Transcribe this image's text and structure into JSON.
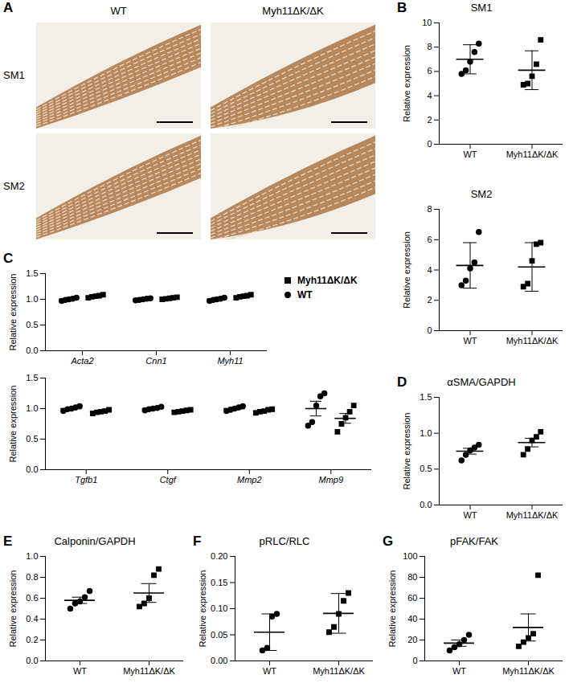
{
  "image_panel": {
    "panel": "A",
    "columns": [
      "WT",
      "Myh11ΔK/ΔK"
    ],
    "rows": [
      "SM1",
      "SM2"
    ]
  },
  "chart_data": [
    {
      "panel": "B",
      "type": "scatter",
      "title": "SM1",
      "y_label": "Relative expression",
      "categories": [
        "WT",
        "Myh11ΔK/ΔK"
      ],
      "ylim": [
        0,
        10
      ],
      "yticks": [
        0,
        2,
        4,
        6,
        8,
        10
      ],
      "series": [
        {
          "name": "WT",
          "marker": "circle",
          "color": "#000000",
          "points": [
            5.8,
            6.1,
            6.8,
            7.6,
            8.3
          ],
          "mean": 7.0,
          "error": 1.2
        },
        {
          "name": "Myh11ΔK/ΔK",
          "marker": "square",
          "color": "#000000",
          "points": [
            4.9,
            5.0,
            5.6,
            6.6,
            8.6
          ],
          "mean": 6.1,
          "error": 1.6
        }
      ]
    },
    {
      "type": "scatter",
      "title": "SM2",
      "y_label": "Relative expression",
      "categories": [
        "WT",
        "Myh11ΔK/ΔK"
      ],
      "ylim": [
        0,
        8
      ],
      "yticks": [
        0,
        2,
        4,
        6,
        8
      ],
      "series": [
        {
          "name": "WT",
          "marker": "circle",
          "color": "#000000",
          "points": [
            3.0,
            3.3,
            4.1,
            4.5,
            6.5
          ],
          "mean": 4.3,
          "error": 1.5
        },
        {
          "name": "Myh11ΔK/ΔK",
          "marker": "square",
          "color": "#000000",
          "points": [
            2.9,
            3.1,
            4.6,
            5.7,
            5.8
          ],
          "mean": 4.2,
          "error": 1.6
        }
      ]
    },
    {
      "panel": "C",
      "type": "scatter",
      "y_label": "Relative expression",
      "legend": "right",
      "categories": [
        "Acta2",
        "Cnn1",
        "Myh11"
      ],
      "ylim": [
        0,
        1.5
      ],
      "yticks": [
        {
          "value": 0,
          "label": "0.0"
        },
        0.5,
        {
          "value": 1,
          "label": "1.0"
        },
        1.5
      ],
      "series": [
        {
          "name": "WT",
          "marker": "circle",
          "color": "#000000",
          "points": [
            [
              0.97,
              0.99,
              1.0,
              1.01,
              1.03
            ],
            [
              0.98,
              0.99,
              1.0,
              1.01,
              1.02
            ],
            [
              0.97,
              0.99,
              1.0,
              1.01,
              1.03
            ]
          ],
          "means": [
            1.0,
            1.0,
            1.0
          ],
          "errors": [
            0.02,
            0.01,
            0.02
          ]
        },
        {
          "name": "Myh11ΔK/ΔK",
          "marker": "square",
          "color": "#000000",
          "points": [
            [
              1.03,
              1.05,
              1.06,
              1.07,
              1.09
            ],
            [
              1.0,
              1.01,
              1.02,
              1.03,
              1.04
            ],
            [
              1.03,
              1.05,
              1.06,
              1.07,
              1.09
            ]
          ],
          "means": [
            1.06,
            1.02,
            1.06
          ],
          "errors": [
            0.02,
            0.01,
            0.02
          ]
        }
      ]
    },
    {
      "type": "scatter",
      "y_label": "Relative expression",
      "categories": [
        "Tgfb1",
        "Ctgf",
        "Mmp2",
        "Mmp9"
      ],
      "ylim": [
        0,
        1.5
      ],
      "yticks": [
        {
          "value": 0,
          "label": "0.0"
        },
        0.5,
        {
          "value": 1,
          "label": "1.0"
        },
        1.5
      ],
      "series": [
        {
          "name": "WT",
          "marker": "circle",
          "color": "#000000",
          "points": [
            [
              0.96,
              0.99,
              1.0,
              1.02,
              1.04
            ],
            [
              0.97,
              0.99,
              1.0,
              1.01,
              1.03
            ],
            [
              0.96,
              0.98,
              1.0,
              1.02,
              1.04
            ],
            [
              0.72,
              0.78,
              1.05,
              1.2,
              1.25
            ]
          ],
          "means": [
            1.0,
            1.0,
            1.0,
            1.0
          ],
          "errors": [
            0.02,
            0.01,
            0.02,
            0.12
          ]
        },
        {
          "name": "Myh11ΔK/ΔK",
          "marker": "square",
          "color": "#000000",
          "points": [
            [
              0.92,
              0.94,
              0.95,
              0.96,
              0.98
            ],
            [
              0.94,
              0.95,
              0.96,
              0.97,
              0.98
            ],
            [
              0.93,
              0.95,
              0.96,
              0.98,
              0.99
            ],
            [
              0.62,
              0.75,
              0.85,
              0.95,
              1.05
            ]
          ],
          "means": [
            0.95,
            0.96,
            0.96,
            0.84
          ],
          "errors": [
            0.01,
            0.01,
            0.01,
            0.08
          ]
        }
      ]
    },
    {
      "panel": "D",
      "type": "scatter",
      "title": "αSMA/GAPDH",
      "y_label": "Relative expression",
      "categories": [
        "WT",
        "Myh11ΔK/ΔK"
      ],
      "ylim": [
        0,
        1.5
      ],
      "yticks": [
        {
          "value": 0,
          "label": "0.0"
        },
        0.5,
        {
          "value": 1,
          "label": "1.0"
        },
        1.5
      ],
      "series": [
        {
          "name": "WT",
          "marker": "circle",
          "color": "#000000",
          "points": [
            0.62,
            0.7,
            0.76,
            0.8,
            0.84
          ],
          "mean": 0.75,
          "error": 0.04
        },
        {
          "name": "Myh11ΔK/ΔK",
          "marker": "square",
          "color": "#000000",
          "points": [
            0.7,
            0.78,
            0.9,
            0.95,
            1.02
          ],
          "mean": 0.87,
          "error": 0.06
        }
      ]
    },
    {
      "panel": "E",
      "type": "scatter",
      "title": "Calponin/GAPDH",
      "y_label": "Relative expression",
      "categories": [
        "WT",
        "Myh11ΔK/ΔK"
      ],
      "ylim": [
        0,
        1
      ],
      "yticks": [
        {
          "value": 0,
          "label": "0.0"
        },
        0.2,
        0.4,
        0.6,
        0.8,
        {
          "value": 1,
          "label": "1.0"
        }
      ],
      "series": [
        {
          "name": "WT",
          "marker": "circle",
          "color": "#000000",
          "points": [
            0.5,
            0.55,
            0.57,
            0.61,
            0.67
          ],
          "mean": 0.58,
          "error": 0.03
        },
        {
          "name": "Myh11ΔK/ΔK",
          "marker": "square",
          "color": "#000000",
          "points": [
            0.52,
            0.55,
            0.6,
            0.82,
            0.88
          ],
          "mean": 0.65,
          "error": 0.09
        }
      ]
    },
    {
      "panel": "F",
      "type": "scatter",
      "title": "pRLC/RLC",
      "y_label": "Relative expression",
      "categories": [
        "WT",
        "Myh11ΔK/ΔK"
      ],
      "ylim": [
        0,
        0.2
      ],
      "yticks": [
        {
          "value": 0,
          "label": "0.00"
        },
        0.05,
        {
          "value": 0.1,
          "label": "0.10"
        },
        0.15,
        {
          "value": 0.2,
          "label": "0.20"
        }
      ],
      "series": [
        {
          "name": "WT",
          "marker": "circle",
          "color": "#000000",
          "points": [
            0.02,
            0.025,
            0.085,
            0.09
          ],
          "mean": 0.055,
          "error": 0.035
        },
        {
          "name": "Myh11ΔK/ΔK",
          "marker": "square",
          "color": "#000000",
          "points": [
            0.055,
            0.065,
            0.09,
            0.115,
            0.13
          ],
          "mean": 0.091,
          "error": 0.038
        }
      ]
    },
    {
      "panel": "G",
      "type": "scatter",
      "title": "pFAK/FAK",
      "y_label": "Relative expression",
      "categories": [
        "WT",
        "Myh11ΔK/ΔK"
      ],
      "ylim": [
        0,
        100
      ],
      "yticks": [
        0,
        20,
        40,
        60,
        80,
        100
      ],
      "series": [
        {
          "name": "WT",
          "marker": "circle",
          "color": "#000000",
          "points": [
            10,
            13,
            16,
            20,
            25
          ],
          "mean": 17,
          "error": 3
        },
        {
          "name": "Myh11ΔK/ΔK",
          "marker": "square",
          "color": "#000000",
          "points": [
            14,
            18,
            22,
            26,
            82
          ],
          "mean": 32,
          "error": 13
        }
      ]
    }
  ]
}
